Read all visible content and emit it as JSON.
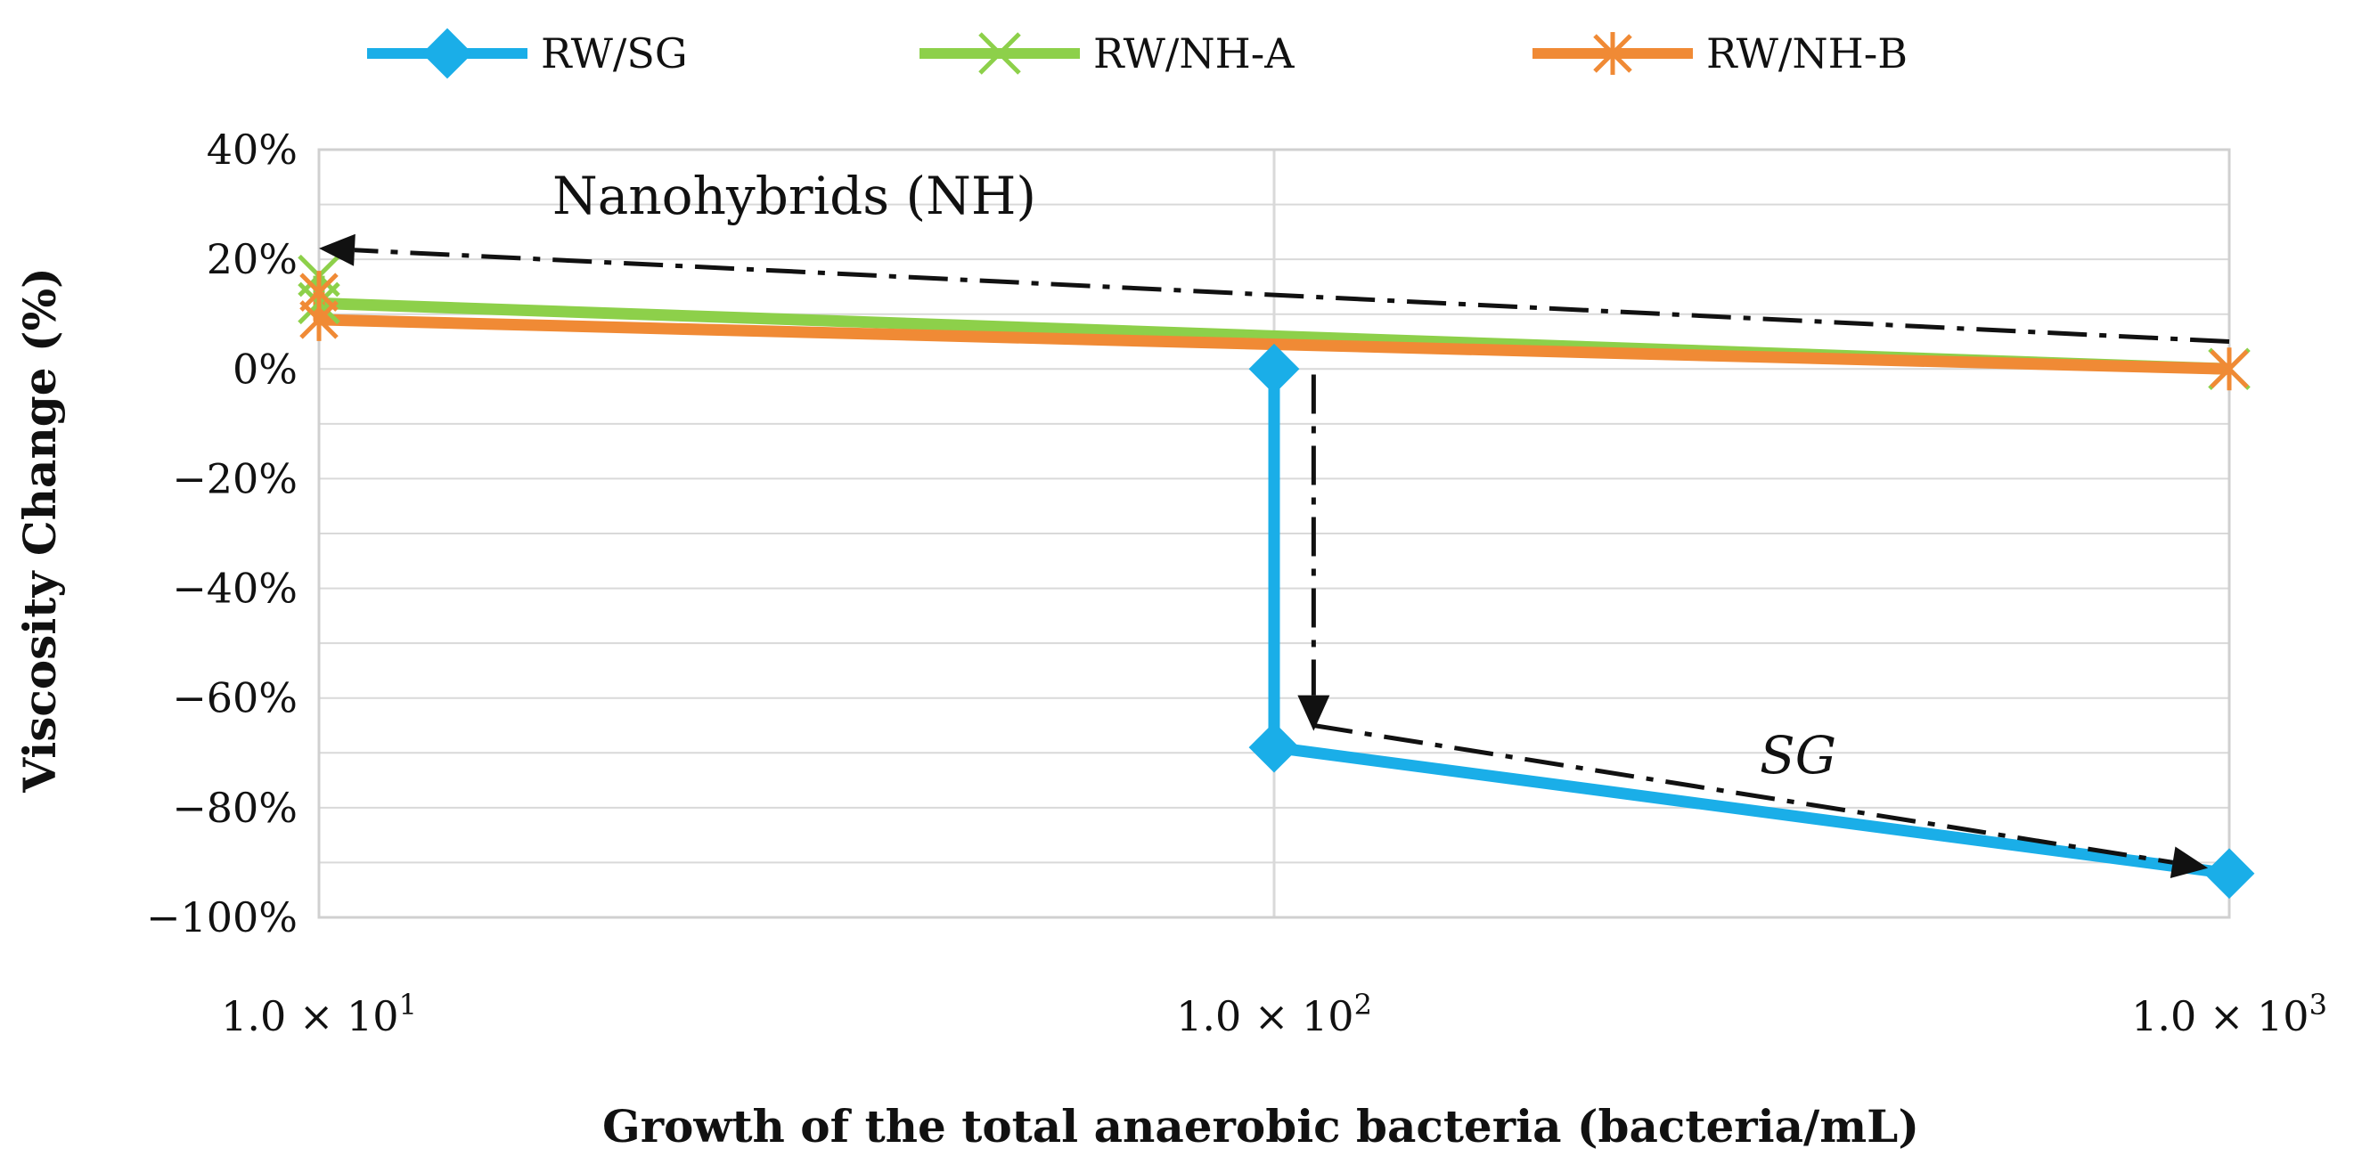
{
  "chart_data": {
    "type": "line",
    "title": "",
    "xlabel": "Growth of the total anaerobic bacteria (bacteria/mL)",
    "ylabel": "Viscosity Change (%)",
    "x_scale": "log",
    "xlim": [
      10,
      1000
    ],
    "ylim": [
      -100,
      40
    ],
    "x_ticks": [
      {
        "value": 10,
        "mantissa": "1.0 × 10",
        "exponent": "1"
      },
      {
        "value": 100,
        "mantissa": "1.0 × 10",
        "exponent": "2"
      },
      {
        "value": 1000,
        "mantissa": "1.0 × 10",
        "exponent": "3"
      }
    ],
    "y_ticks": [
      {
        "value": 40,
        "label": "40%"
      },
      {
        "value": 20,
        "label": "20%"
      },
      {
        "value": 0,
        "label": "0%"
      },
      {
        "value": -20,
        "label": "−20%"
      },
      {
        "value": -40,
        "label": "−40%"
      },
      {
        "value": -60,
        "label": "−60%"
      },
      {
        "value": -80,
        "label": "−80%"
      },
      {
        "value": -100,
        "label": "−100%"
      }
    ],
    "grid": true,
    "legend_position": "top",
    "series": [
      {
        "name": "RW/SG",
        "color": "#1aaee8",
        "marker": "diamond",
        "points": [
          {
            "x": 100,
            "y": 0
          },
          {
            "x": 100,
            "y": -69
          },
          {
            "x": 1000,
            "y": -92
          }
        ]
      },
      {
        "name": "RW/NH-A",
        "color": "#8dd04a",
        "marker": "x",
        "points": [
          {
            "x": 10,
            "y": 17
          },
          {
            "x": 10,
            "y": 12
          },
          {
            "x": 1000,
            "y": 0
          }
        ]
      },
      {
        "name": "RW/NH-B",
        "color": "#f08a35",
        "marker": "star",
        "points": [
          {
            "x": 10,
            "y": 14
          },
          {
            "x": 10,
            "y": 9
          },
          {
            "x": 1000,
            "y": 0
          }
        ]
      }
    ],
    "annotations": [
      {
        "text": "Nanohybrids (NH)",
        "italic": false
      },
      {
        "text": "SG",
        "italic": true
      }
    ],
    "arrows": [
      {
        "from": {
          "x": 1000,
          "y": 5
        },
        "to": {
          "x": 10,
          "y": 22
        }
      },
      {
        "from": {
          "x": 110,
          "y": -1
        },
        "to": {
          "x": 110,
          "y": -66
        }
      },
      {
        "from": {
          "x": 110,
          "y": -65
        },
        "to": {
          "x": 950,
          "y": -91
        }
      }
    ]
  }
}
